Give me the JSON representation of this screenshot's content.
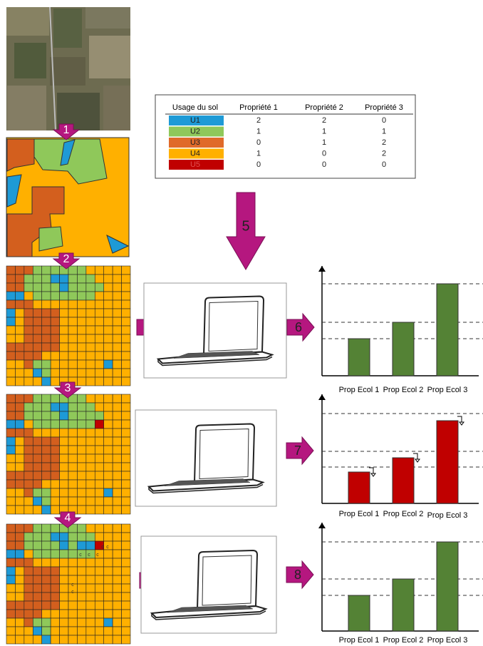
{
  "table": {
    "header": [
      "Usage du sol",
      "Propriété 1",
      "Propriété 2",
      "Propriété 3"
    ],
    "rows": [
      [
        "U1",
        2,
        2,
        0
      ],
      [
        "U2",
        1,
        1,
        1
      ],
      [
        "U3",
        0,
        1,
        2
      ],
      [
        "U4",
        1,
        0,
        2
      ],
      [
        "U5",
        0,
        0,
        0
      ]
    ]
  },
  "steps": [
    "1",
    "2",
    "3",
    "4",
    "5",
    "6",
    "6",
    "7",
    "7",
    "8",
    "8"
  ],
  "charts": [
    {
      "categories": [
        "Prop Ecol 1",
        "Prop Ecol 2",
        "Prop Ecol 3"
      ]
    },
    {
      "categories": [
        "Prop Ecol 1",
        "Prop Ecol 2",
        "Prop Ecol 3"
      ]
    },
    {
      "categories": [
        "Prop Ecol 1",
        "Prop Ecol 2",
        "Prop Ecol 3"
      ]
    }
  ],
  "grid_markers": [
    "c",
    "c",
    "c",
    "c",
    "c",
    "c",
    "c"
  ]
}
